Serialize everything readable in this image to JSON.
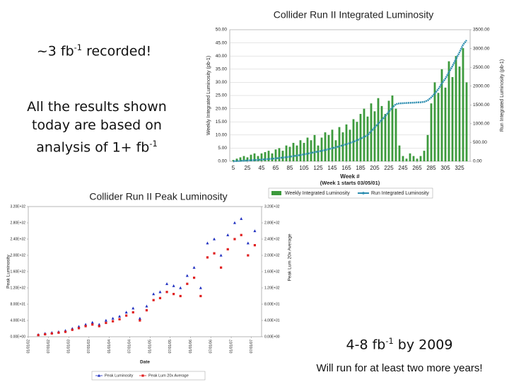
{
  "slide": {
    "notes": [
      {
        "parts": [
          "~3 fb",
          "-1",
          " recorded!"
        ]
      },
      {
        "parts": [
          "All the results shown today are based on analysis of 1+ fb",
          "-1"
        ]
      },
      {
        "parts": [
          "4-8 fb",
          "-1",
          " by 2009"
        ]
      },
      {
        "parts": [
          "Will run for at least two more years!"
        ]
      }
    ]
  },
  "chart_data": [
    {
      "type": "combo",
      "title": "Collider Run II Integrated Luminosity",
      "x_label": "Week #",
      "x_sublabel": "(Week 1 starts 03/05/01)",
      "y_label": "Weekly Integrated Luminosity (pb-1)",
      "y2_label": "Run Integrated Luminosity (pb-1)",
      "x": [
        5,
        10,
        15,
        20,
        25,
        30,
        35,
        40,
        45,
        50,
        55,
        60,
        65,
        70,
        75,
        80,
        85,
        90,
        95,
        100,
        105,
        110,
        115,
        120,
        125,
        130,
        135,
        140,
        145,
        150,
        155,
        160,
        165,
        170,
        175,
        180,
        185,
        190,
        195,
        200,
        205,
        210,
        215,
        220,
        225,
        230,
        235,
        240,
        245,
        250,
        255,
        260,
        265,
        270,
        275,
        280,
        285,
        290,
        295,
        300,
        305,
        310,
        315,
        320,
        325,
        330,
        335
      ],
      "series": [
        {
          "name": "Weekly Integrated Luminosity",
          "type": "bar",
          "color": "#3c9a3c",
          "values": [
            0.5,
            1,
            1.5,
            2,
            1.5,
            2.5,
            3,
            2,
            3,
            3.5,
            4,
            3,
            4.5,
            5,
            4,
            6,
            5.5,
            7,
            6,
            8,
            7,
            9,
            8,
            10,
            6,
            9,
            11,
            10,
            12,
            8,
            13,
            11,
            14,
            12,
            16,
            15,
            18,
            20,
            17,
            22,
            19,
            24,
            21,
            18,
            23,
            25,
            20,
            6,
            2,
            1,
            3,
            2,
            1,
            2,
            4,
            10,
            22,
            30,
            26,
            35,
            28,
            38,
            32,
            40,
            36,
            43,
            30
          ]
        },
        {
          "name": "Run Integrated Luminosity",
          "type": "line",
          "axis": "y2",
          "color": "#2b8db0",
          "values": [
            2,
            5,
            10,
            15,
            20,
            26,
            32,
            38,
            45,
            52,
            60,
            68,
            77,
            87,
            98,
            110,
            123,
            137,
            152,
            168,
            185,
            203,
            222,
            242,
            258,
            278,
            300,
            323,
            348,
            370,
            398,
            425,
            455,
            485,
            520,
            558,
            600,
            650,
            695,
            800,
            900,
            1000,
            1100,
            1200,
            1320,
            1430,
            1520,
            1540,
            1545,
            1550,
            1555,
            1560,
            1565,
            1570,
            1580,
            1620,
            1700,
            1800,
            1920,
            2070,
            2200,
            2370,
            2530,
            2720,
            2900,
            3100,
            3220
          ]
        }
      ],
      "xlim": [
        0,
        340
      ],
      "xticks": [
        5,
        25,
        45,
        65,
        85,
        105,
        125,
        145,
        165,
        185,
        205,
        225,
        245,
        265,
        285,
        305,
        325
      ],
      "ylim": [
        0,
        50
      ],
      "yticks": [
        {
          "value": 0,
          "label": "0.00"
        },
        {
          "value": 5,
          "label": "5.00"
        },
        {
          "value": 10,
          "label": "10.00"
        },
        {
          "value": 15,
          "label": "15.00"
        },
        {
          "value": 20,
          "label": "20.00"
        },
        {
          "value": 25,
          "label": "25.00"
        },
        {
          "value": 30,
          "label": "30.00"
        },
        {
          "value": 35,
          "label": "35.00"
        },
        {
          "value": 40,
          "label": "40.00"
        },
        {
          "value": 45,
          "label": "45.00"
        },
        {
          "value": 50,
          "label": "50.00"
        }
      ],
      "y2lim": [
        0,
        3500
      ],
      "y2ticks": [
        {
          "value": 0,
          "label": "0.00"
        },
        {
          "value": 500,
          "label": "500.00"
        },
        {
          "value": 1000,
          "label": "1000.00"
        },
        {
          "value": 1500,
          "label": "1500.00"
        },
        {
          "value": 2000,
          "label": "2000.00"
        },
        {
          "value": 2500,
          "label": "2500.00"
        },
        {
          "value": 3000,
          "label": "3000.00"
        },
        {
          "value": 3500,
          "label": "3500.00"
        }
      ],
      "grid": true,
      "legend": "bottom"
    },
    {
      "type": "scatter",
      "title": "Collider Run II Peak Luminosity",
      "x_label": "Date",
      "y_label": "Peak Luminosity",
      "y2_label": "Peak Lum 20x Average",
      "x": [
        "2002-04-01",
        "2002-06-01",
        "2002-08-01",
        "2002-10-01",
        "2002-12-01",
        "2003-02-01",
        "2003-04-01",
        "2003-06-01",
        "2003-08-01",
        "2003-10-01",
        "2003-12-01",
        "2004-02-01",
        "2004-04-01",
        "2004-06-01",
        "2004-08-01",
        "2004-10-01",
        "2004-12-01",
        "2005-02-01",
        "2005-04-01",
        "2005-06-01",
        "2005-08-01",
        "2005-10-01",
        "2005-12-01",
        "2006-02-01",
        "2006-04-01",
        "2006-06-01",
        "2006-08-01",
        "2006-10-01",
        "2006-12-01",
        "2007-02-01",
        "2007-04-01",
        "2007-06-01",
        "2007-08-01"
      ],
      "series": [
        {
          "name": "Peak Luminosity",
          "marker": "triangle",
          "color": "#1f2fc0",
          "values": [
            5e+30,
            8e+30,
            1e+31,
            1.2e+31,
            1.5e+31,
            2e+31,
            2.5e+31,
            3e+31,
            3.5e+31,
            3e+31,
            4e+31,
            4.5e+31,
            5e+31,
            6e+31,
            7e+31,
            4.5e+31,
            7.5e+31,
            1.05e+32,
            1.1e+32,
            1.3e+32,
            1.25e+32,
            1.2e+32,
            1.5e+32,
            1.7e+32,
            1.2e+32,
            2.3e+32,
            2.4e+32,
            2e+32,
            2.5e+32,
            2.8e+32,
            2.9e+32,
            2.3e+32,
            2.6e+32
          ]
        },
        {
          "name": "Peak Lum 20x Average",
          "marker": "square",
          "color": "#e02020",
          "values": [
            4e+30,
            6e+30,
            8e+30,
            1e+31,
            1.2e+31,
            1.7e+31,
            2.1e+31,
            2.6e+31,
            3e+31,
            2.6e+31,
            3.4e+31,
            3.8e+31,
            4.3e+31,
            5.2e+31,
            6e+31,
            4e+31,
            6.5e+31,
            9e+31,
            9.5e+31,
            1.1e+32,
            1.05e+32,
            1e+32,
            1.3e+32,
            1.45e+32,
            1e+32,
            1.95e+32,
            2.05e+32,
            1.7e+32,
            2.15e+32,
            2.4e+32,
            2.5e+32,
            2e+32,
            2.25e+32
          ]
        }
      ],
      "xlim": [
        "2002-01-01",
        "2007-10-01"
      ],
      "xticks": [
        {
          "value": "2002-01-01",
          "label": "01/01/02"
        },
        {
          "value": "2002-07-01",
          "label": "07/01/02"
        },
        {
          "value": "2003-01-01",
          "label": "01/01/03"
        },
        {
          "value": "2003-07-01",
          "label": "07/01/03"
        },
        {
          "value": "2004-01-01",
          "label": "01/01/04"
        },
        {
          "value": "2004-07-01",
          "label": "07/01/04"
        },
        {
          "value": "2005-01-01",
          "label": "01/01/05"
        },
        {
          "value": "2005-07-01",
          "label": "07/01/05"
        },
        {
          "value": "2006-01-01",
          "label": "01/01/06"
        },
        {
          "value": "2006-07-01",
          "label": "07/01/06"
        },
        {
          "value": "2007-01-01",
          "label": "01/01/07"
        },
        {
          "value": "2007-07-01",
          "label": "07/01/07"
        }
      ],
      "ylim": [
        0,
        3.2e+32
      ],
      "yticks": [
        {
          "value": 0,
          "label": "0.00E+00"
        },
        {
          "value": 4e+31,
          "label": "4.00E+31"
        },
        {
          "value": 8e+31,
          "label": "8.00E+31"
        },
        {
          "value": 1.2e+32,
          "label": "1.20E+32"
        },
        {
          "value": 1.6e+32,
          "label": "1.60E+32"
        },
        {
          "value": 2e+32,
          "label": "2.00E+32"
        },
        {
          "value": 2.4e+32,
          "label": "2.40E+32"
        },
        {
          "value": 2.8e+32,
          "label": "2.80E+32"
        },
        {
          "value": 3.2e+32,
          "label": "3.20E+32"
        }
      ],
      "y2lim": [
        0,
        3.2e+32
      ],
      "y2ticks": [
        {
          "value": 0,
          "label": "0.00E+00"
        },
        {
          "value": 4e+31,
          "label": "4.00E+31"
        },
        {
          "value": 8e+31,
          "label": "8.00E+31"
        },
        {
          "value": 1.2e+32,
          "label": "1.20E+32"
        },
        {
          "value": 1.6e+32,
          "label": "1.60E+32"
        },
        {
          "value": 2e+32,
          "label": "2.00E+32"
        },
        {
          "value": 2.4e+32,
          "label": "2.40E+32"
        },
        {
          "value": 2.8e+32,
          "label": "2.80E+32"
        },
        {
          "value": 3.2e+32,
          "label": "3.20E+32"
        }
      ],
      "grid": false,
      "legend": "bottom"
    }
  ]
}
